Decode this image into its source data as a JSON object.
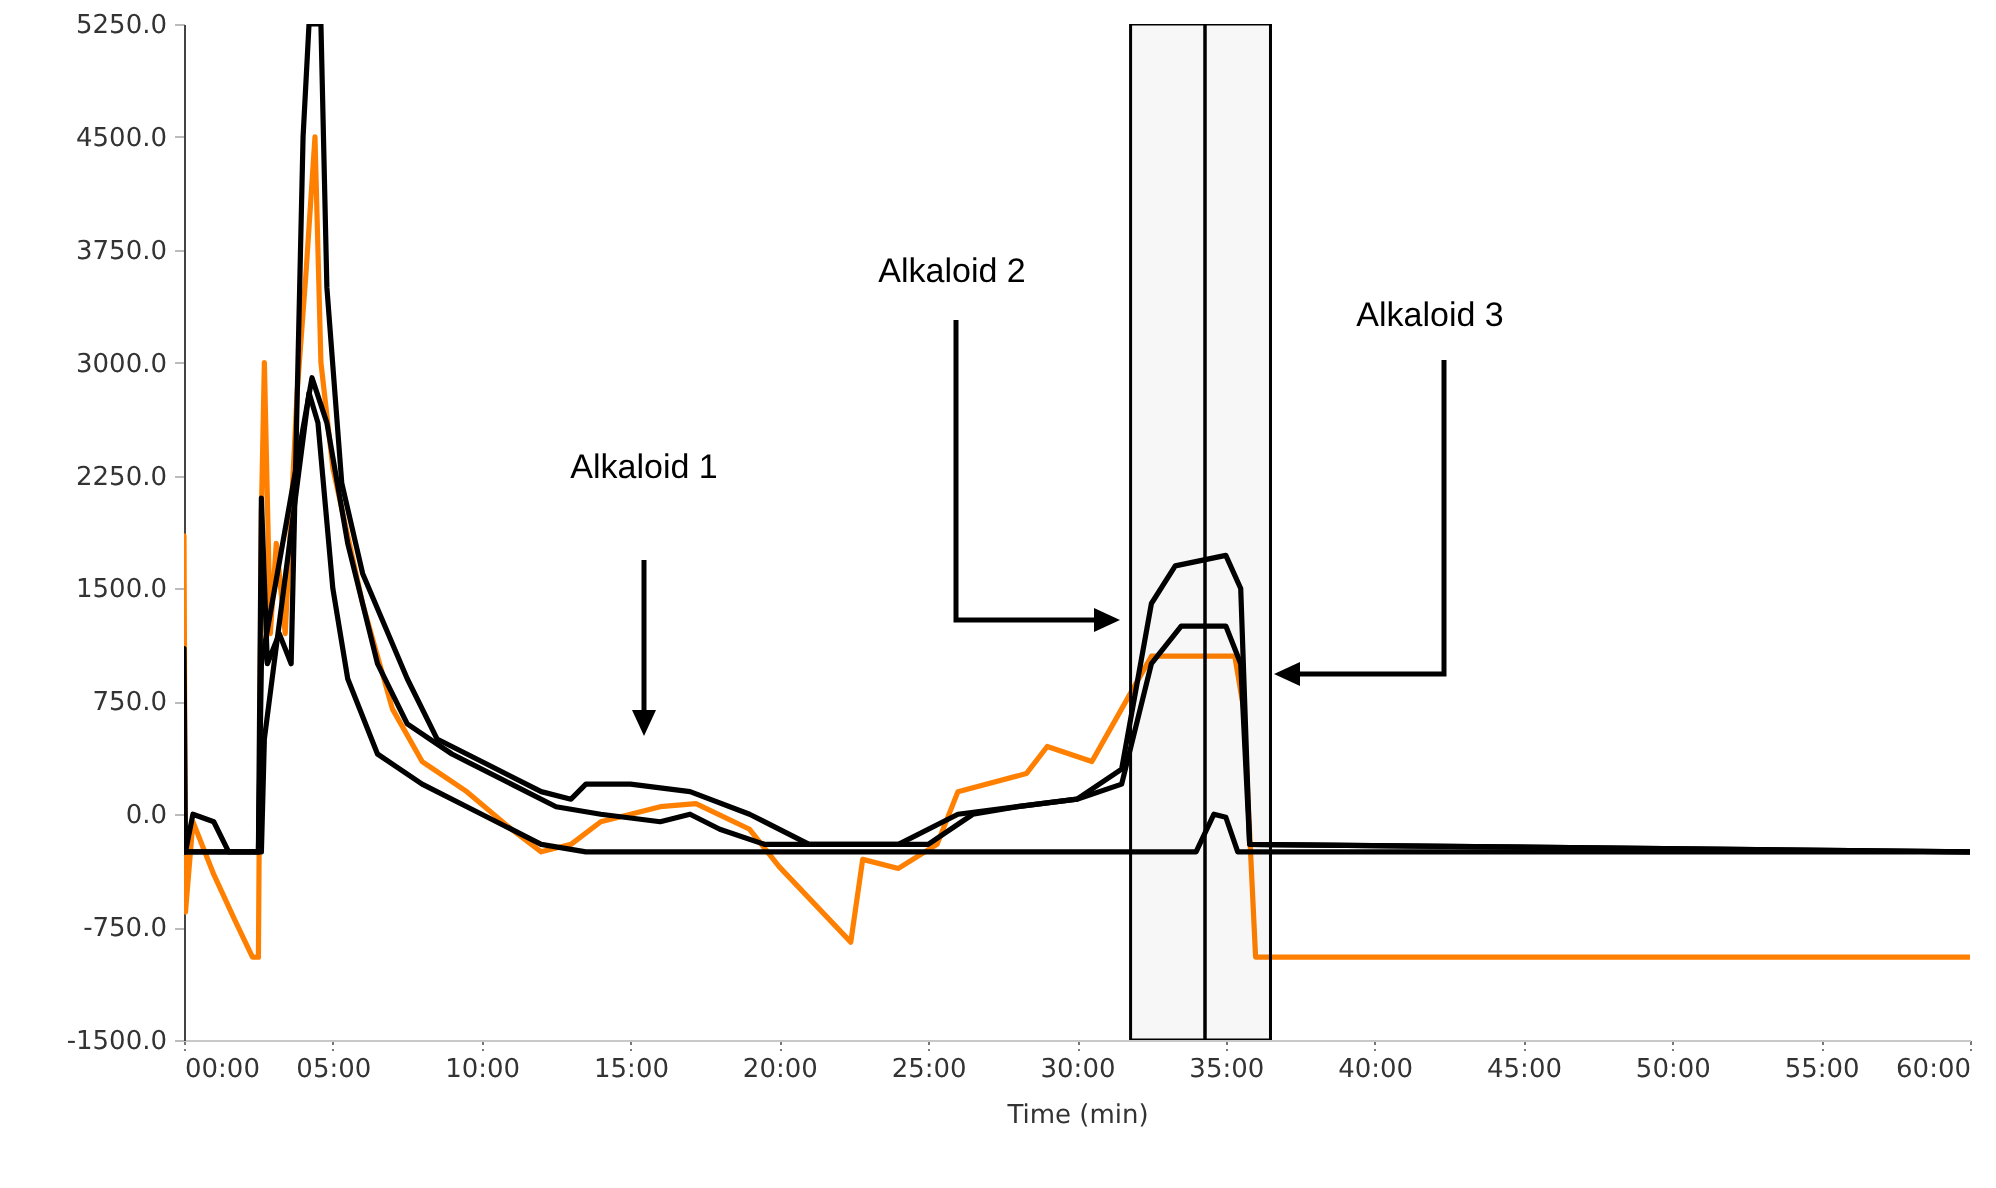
{
  "chart_data": {
    "type": "line",
    "xlabel": "Time (min)",
    "xlim": [
      0,
      60
    ],
    "ylim": [
      -1500,
      5250
    ],
    "xticks": [
      {
        "value": 0,
        "label": "00:00"
      },
      {
        "value": 5,
        "label": "05:00"
      },
      {
        "value": 10,
        "label": "10:00"
      },
      {
        "value": 15,
        "label": "15:00"
      },
      {
        "value": 20,
        "label": "20:00"
      },
      {
        "value": 25,
        "label": "25:00"
      },
      {
        "value": 30,
        "label": "30:00"
      },
      {
        "value": 35,
        "label": "35:00"
      },
      {
        "value": 40,
        "label": "40:00"
      },
      {
        "value": 45,
        "label": "45:00"
      },
      {
        "value": 50,
        "label": "50:00"
      },
      {
        "value": 55,
        "label": "55:00"
      },
      {
        "value": 60,
        "label": "60:00"
      }
    ],
    "yticks": [
      {
        "value": -1500,
        "label": "-1500.0"
      },
      {
        "value": -750,
        "label": "-750.0"
      },
      {
        "value": 0,
        "label": "0.0"
      },
      {
        "value": 750,
        "label": "750.0"
      },
      {
        "value": 1500,
        "label": "1500.0"
      },
      {
        "value": 2250,
        "label": "2250.0"
      },
      {
        "value": 3000,
        "label": "3000.0"
      },
      {
        "value": 3750,
        "label": "3750.0"
      },
      {
        "value": 4500,
        "label": "4500.0"
      },
      {
        "value": 5250,
        "label": "5250.0"
      }
    ],
    "grid": false,
    "line_style": "solid",
    "marker": "none",
    "series": [
      {
        "color": "#ff8000",
        "x": [
          0,
          0.05,
          0.3,
          1,
          1.7,
          2.3,
          2.5,
          2.6,
          2.7,
          2.9,
          3.1,
          3.4,
          3.8,
          4.1,
          4.4,
          4.6,
          5,
          6,
          7,
          8,
          9.5,
          11,
          12,
          13,
          14,
          16,
          17.2,
          19,
          20,
          22.4,
          22.8,
          24,
          25.3,
          26,
          28.3,
          29,
          30.5,
          31.5,
          32.5,
          35.3,
          35.6,
          36,
          60
        ],
        "values": [
          1850,
          -650,
          -50,
          -400,
          -700,
          -950,
          -950,
          2000,
          3000,
          1200,
          1800,
          1200,
          2800,
          3600,
          4500,
          3000,
          2300,
          1400,
          700,
          350,
          150,
          -100,
          -250,
          -200,
          -50,
          50,
          70,
          -100,
          -350,
          -850,
          -300,
          -360,
          -200,
          150,
          270,
          450,
          350,
          700,
          1050,
          1050,
          700,
          -950,
          -950
        ]
      },
      {
        "color": "#000000",
        "x": [
          0,
          0.05,
          0.3,
          1,
          1.5,
          2.5,
          2.6,
          2.8,
          3.2,
          3.6,
          4,
          4.2,
          4.6,
          4.8,
          5.3,
          6,
          7.5,
          8.5,
          10,
          12,
          13,
          13.5,
          15,
          17,
          19,
          21,
          24,
          26,
          28,
          30,
          31.5,
          32.5,
          33.3,
          35,
          35.5,
          35.8,
          60
        ],
        "values": [
          1100,
          -250,
          0,
          -50,
          -250,
          -250,
          2100,
          1000,
          1200,
          1000,
          4500,
          5250,
          5250,
          3500,
          2200,
          1600,
          900,
          500,
          350,
          150,
          100,
          200,
          200,
          150,
          0,
          -200,
          -200,
          0,
          50,
          100,
          300,
          1400,
          1650,
          1720,
          1500,
          -200,
          -250
        ]
      },
      {
        "color": "#000000",
        "x": [
          0,
          2.5,
          2.6,
          4.3,
          4.8,
          5.5,
          6.5,
          7.5,
          9,
          11,
          12.5,
          14,
          16,
          17,
          18,
          19.5,
          25,
          26.5,
          28,
          30,
          31.5,
          32.5,
          33.5,
          35,
          35.5,
          35.8,
          60
        ],
        "values": [
          -250,
          -250,
          1000,
          2900,
          2600,
          1800,
          1000,
          600,
          400,
          200,
          50,
          0,
          -50,
          0,
          -100,
          -200,
          -200,
          0,
          50,
          100,
          200,
          1000,
          1250,
          1250,
          1000,
          -200,
          -250
        ]
      },
      {
        "color": "#000000",
        "x": [
          0,
          2.6,
          2.7,
          4.2,
          4.5,
          5,
          5.5,
          6.5,
          8,
          10,
          12,
          13.5,
          34,
          34.6,
          35,
          35.4,
          60
        ],
        "values": [
          -250,
          -250,
          500,
          2800,
          2600,
          1500,
          900,
          400,
          200,
          0,
          -200,
          -250,
          -250,
          0,
          -20,
          -250,
          -250
        ]
      }
    ],
    "bands": [
      {
        "axis": "x",
        "from": 31.8,
        "to": 34.3,
        "color": "#000000"
      },
      {
        "axis": "x",
        "from": 34.3,
        "to": 36.5,
        "color": "#000000"
      }
    ],
    "annotations": [
      "Alkaloid 1",
      "Alkaloid 2",
      "Alkaloid 3"
    ]
  }
}
